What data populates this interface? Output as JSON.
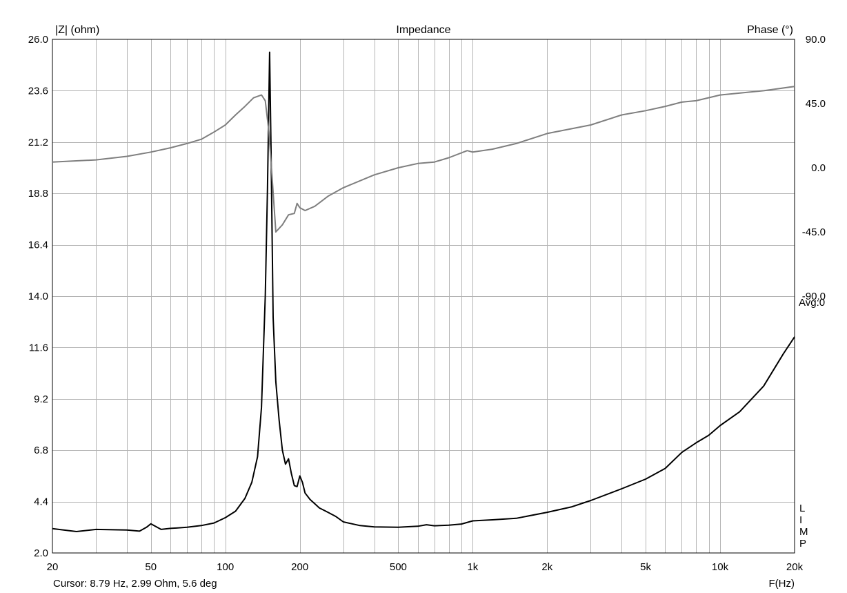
{
  "chart_data": {
    "type": "line",
    "title": "Impedance",
    "ylabel_left": "|Z| (ohm)",
    "ylabel_right": "Phase (°)",
    "xlabel": "F(Hz)",
    "x_scale": "log",
    "xlim": [
      20,
      20000
    ],
    "ylim_left": [
      2.0,
      26.0
    ],
    "ylim_right": [
      -270,
      90
    ],
    "grid": true,
    "x_ticks": [
      {
        "value": 20,
        "label": "20"
      },
      {
        "value": 50,
        "label": "50"
      },
      {
        "value": 100,
        "label": "100"
      },
      {
        "value": 200,
        "label": "200"
      },
      {
        "value": 500,
        "label": "500"
      },
      {
        "value": 1000,
        "label": "1k"
      },
      {
        "value": 2000,
        "label": "2k"
      },
      {
        "value": 5000,
        "label": "5k"
      },
      {
        "value": 10000,
        "label": "10k"
      },
      {
        "value": 20000,
        "label": "20k"
      }
    ],
    "y_ticks_left": [
      "26.0",
      "23.6",
      "21.2",
      "18.8",
      "16.4",
      "14.0",
      "11.6",
      "9.2",
      "6.8",
      "4.4",
      "2.0"
    ],
    "y_ticks_right": [
      "90.0",
      "45.0",
      "0.0",
      "-45.0",
      "-90.0"
    ],
    "right_annotation": "Avg:0",
    "side_letters": [
      "L",
      "I",
      "M",
      "P"
    ],
    "cursor_text": "Cursor: 8.79 Hz, 2.99 Ohm, 5.6 deg",
    "colors": {
      "impedance": "#000000",
      "phase": "#7f7f7f",
      "grid": "#b4b4b4"
    },
    "series": [
      {
        "axis": "left",
        "points": [
          [
            20,
            3.14
          ],
          [
            25,
            3.0
          ],
          [
            30,
            3.1
          ],
          [
            40,
            3.07
          ],
          [
            45,
            3.02
          ],
          [
            48,
            3.2
          ],
          [
            50,
            3.36
          ],
          [
            55,
            3.1
          ],
          [
            60,
            3.15
          ],
          [
            70,
            3.2
          ],
          [
            80,
            3.28
          ],
          [
            90,
            3.4
          ],
          [
            100,
            3.65
          ],
          [
            110,
            3.95
          ],
          [
            120,
            4.55
          ],
          [
            128,
            5.3
          ],
          [
            135,
            6.5
          ],
          [
            140,
            8.8
          ],
          [
            145,
            14.0
          ],
          [
            148,
            19.0
          ],
          [
            151,
            25.4
          ],
          [
            153,
            21.0
          ],
          [
            156,
            13.0
          ],
          [
            160,
            10.0
          ],
          [
            165,
            8.2
          ],
          [
            170,
            6.8
          ],
          [
            175,
            6.15
          ],
          [
            180,
            6.4
          ],
          [
            185,
            5.7
          ],
          [
            190,
            5.15
          ],
          [
            195,
            5.1
          ],
          [
            200,
            5.6
          ],
          [
            205,
            5.3
          ],
          [
            210,
            4.8
          ],
          [
            220,
            4.5
          ],
          [
            230,
            4.3
          ],
          [
            240,
            4.1
          ],
          [
            250,
            4.0
          ],
          [
            260,
            3.9
          ],
          [
            280,
            3.7
          ],
          [
            300,
            3.45
          ],
          [
            350,
            3.28
          ],
          [
            400,
            3.22
          ],
          [
            500,
            3.2
          ],
          [
            600,
            3.25
          ],
          [
            650,
            3.32
          ],
          [
            700,
            3.27
          ],
          [
            800,
            3.3
          ],
          [
            900,
            3.35
          ],
          [
            1000,
            3.5
          ],
          [
            1200,
            3.55
          ],
          [
            1500,
            3.62
          ],
          [
            2000,
            3.9
          ],
          [
            2500,
            4.15
          ],
          [
            3000,
            4.45
          ],
          [
            4000,
            5.0
          ],
          [
            5000,
            5.45
          ],
          [
            6000,
            5.95
          ],
          [
            7000,
            6.7
          ],
          [
            8000,
            7.15
          ],
          [
            9000,
            7.5
          ],
          [
            10000,
            7.95
          ],
          [
            12000,
            8.6
          ],
          [
            15000,
            9.8
          ],
          [
            18000,
            11.3
          ],
          [
            20000,
            12.1
          ]
        ]
      },
      {
        "axis": "right",
        "points": [
          [
            20,
            4
          ],
          [
            30,
            5.5
          ],
          [
            40,
            8
          ],
          [
            50,
            11
          ],
          [
            60,
            14
          ],
          [
            70,
            17
          ],
          [
            80,
            20
          ],
          [
            90,
            25
          ],
          [
            100,
            30
          ],
          [
            110,
            37
          ],
          [
            120,
            43
          ],
          [
            130,
            49
          ],
          [
            140,
            51
          ],
          [
            145,
            47
          ],
          [
            150,
            25
          ],
          [
            155,
            -10
          ],
          [
            160,
            -45
          ],
          [
            170,
            -40
          ],
          [
            180,
            -33
          ],
          [
            190,
            -32
          ],
          [
            195,
            -25
          ],
          [
            200,
            -28
          ],
          [
            210,
            -30
          ],
          [
            230,
            -27
          ],
          [
            260,
            -20
          ],
          [
            300,
            -14
          ],
          [
            400,
            -5
          ],
          [
            500,
            0
          ],
          [
            600,
            3
          ],
          [
            700,
            4
          ],
          [
            800,
            7
          ],
          [
            950,
            12
          ],
          [
            1000,
            11
          ],
          [
            1200,
            13
          ],
          [
            1500,
            17
          ],
          [
            2000,
            24
          ],
          [
            3000,
            30
          ],
          [
            4000,
            37
          ],
          [
            5000,
            40
          ],
          [
            6000,
            43
          ],
          [
            7000,
            46
          ],
          [
            8000,
            47
          ],
          [
            10000,
            51
          ],
          [
            15000,
            54
          ],
          [
            20000,
            57
          ]
        ]
      }
    ]
  }
}
